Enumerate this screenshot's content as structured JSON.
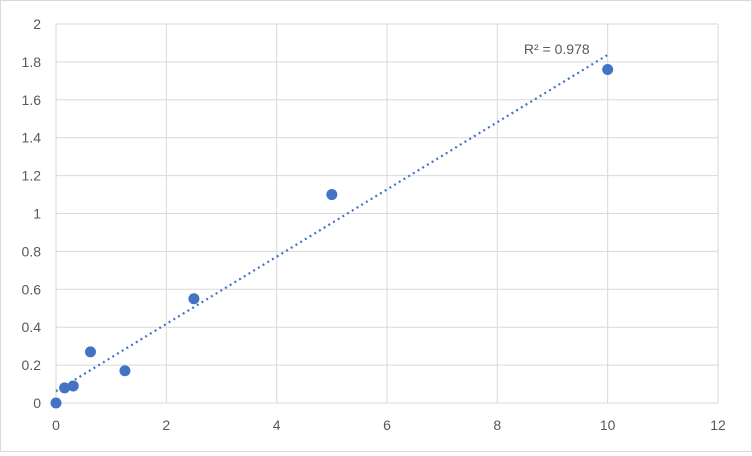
{
  "chart_data": {
    "type": "scatter",
    "title": "",
    "xlabel": "",
    "ylabel": "",
    "xlim": [
      0,
      12
    ],
    "ylim": [
      0,
      2
    ],
    "x_ticks": [
      "0",
      "2",
      "4",
      "6",
      "8",
      "10",
      "12"
    ],
    "y_ticks": [
      "0",
      "0.2",
      "0.4",
      "0.6",
      "0.8",
      "1",
      "1.2",
      "1.4",
      "1.6",
      "1.8",
      "2"
    ],
    "grid": true,
    "legend": "none",
    "series": [
      {
        "x": [
          0,
          0.156,
          0.3125,
          0.625,
          1.25,
          2.5,
          5,
          10
        ],
        "y": [
          0,
          0.08,
          0.09,
          0.27,
          0.17,
          0.55,
          1.1,
          1.76
        ],
        "color": "#4472c4"
      }
    ],
    "trendline": {
      "type": "linear",
      "style": "dotted",
      "color": "#4472c4",
      "label": "R² = 0.978"
    }
  }
}
